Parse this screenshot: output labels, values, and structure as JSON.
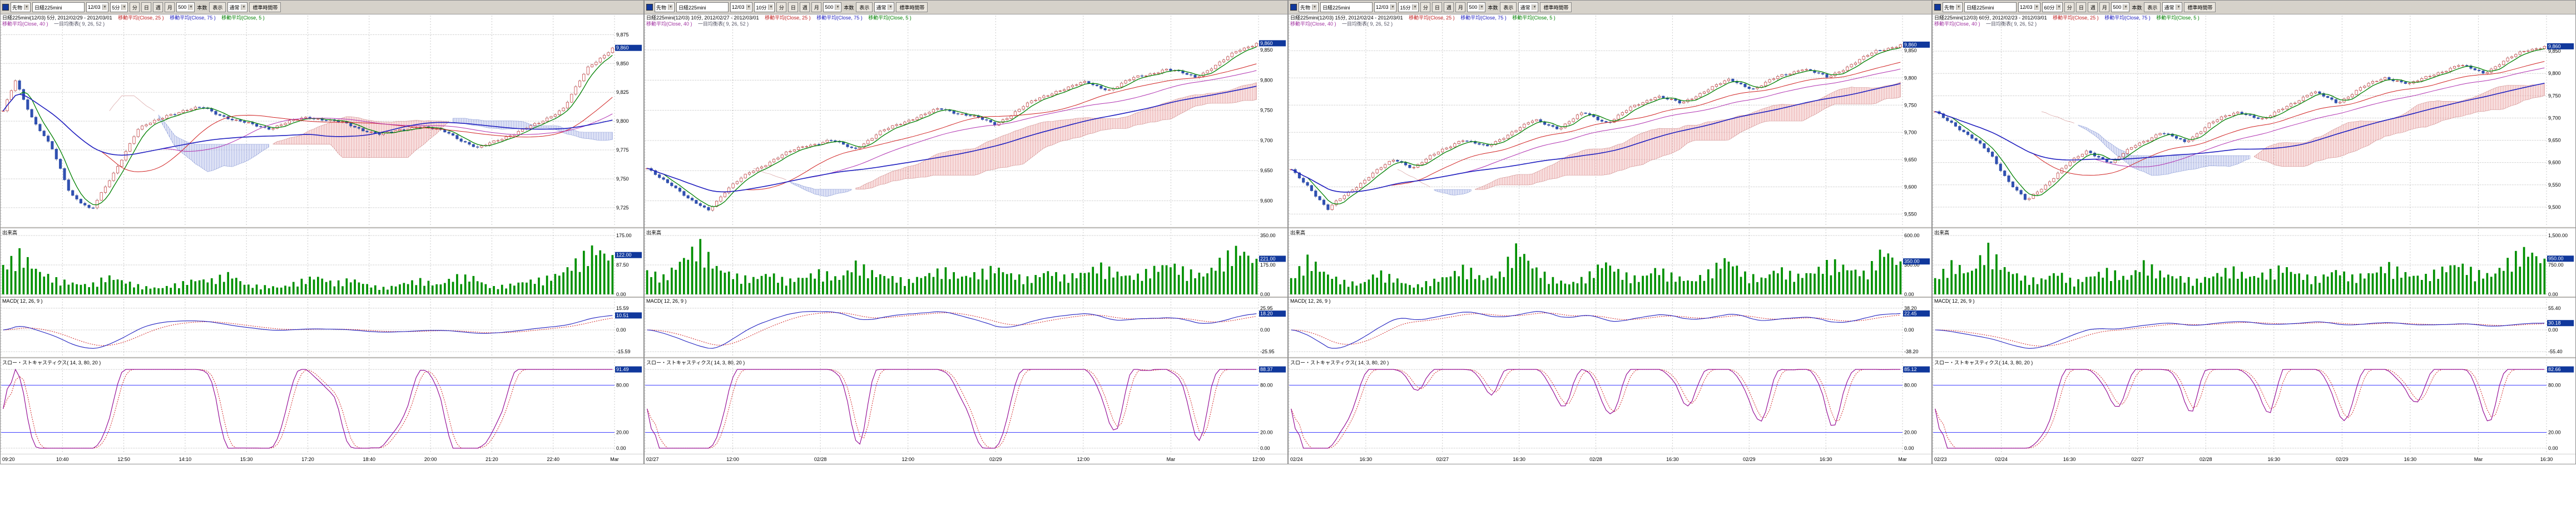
{
  "shared": {
    "volume_label": "出来高",
    "macd_label": "MACD( 12, 26, 9 )",
    "stoch_label": "スロー・ストキャスティクス( 14, 3, 80, 20 )",
    "colors": {
      "accent_box": "#10389c",
      "up_candle": "#c03030",
      "down_candle": "#3050b0",
      "ma5": "#008000",
      "ma25": "#d02020",
      "ma40": "#b030b0",
      "ma75": "#2020c0",
      "volume_bar": "#009000",
      "macd_line": "#2020c0",
      "signal_line": "#d02020",
      "stoch_k": "#900090",
      "stoch_d": "#d02020",
      "band_line": "#4040ff"
    }
  },
  "panels": [
    {
      "toolbar": {
        "category": "先物",
        "instrument": "日経225mini",
        "contract": "12/03",
        "timeframe": "5分",
        "bar_buttons": [
          "分",
          "日",
          "週",
          "月"
        ],
        "count": "500",
        "count_label": "本数",
        "display": "表示",
        "session": "通常",
        "timezone": "標準時間帯"
      },
      "header": {
        "title": "日経225mini(12/03) 5分, 2012/02/29 - 2012/03/01",
        "ma1": "移動平均(Close, 25 )",
        "ma2": "移動平均(Close, 75 )",
        "ma3": "移動平均(Close, 5 )",
        "ma4": "移動平均(Close, 40 )",
        "ichimoku": "一目均衡表( 9, 26, 52 )"
      },
      "price": {
        "type": "candlestick",
        "ylim": [
          9710,
          9880
        ],
        "ticks": [
          [
            "9,875",
            9875
          ],
          [
            "9,850",
            9850
          ],
          [
            "9,825",
            9825
          ],
          [
            "9,800",
            9800
          ],
          [
            "9,775",
            9775
          ],
          [
            "9,750",
            9750
          ],
          [
            "9,725",
            9725
          ]
        ],
        "points": [
          [
            0,
            9808
          ],
          [
            0.02,
            9836
          ],
          [
            0.05,
            9800
          ],
          [
            0.08,
            9776
          ],
          [
            0.11,
            9738
          ],
          [
            0.145,
            9722
          ],
          [
            0.18,
            9754
          ],
          [
            0.22,
            9792
          ],
          [
            0.27,
            9806
          ],
          [
            0.33,
            9812
          ],
          [
            0.38,
            9800
          ],
          [
            0.44,
            9794
          ],
          [
            0.5,
            9804
          ],
          [
            0.56,
            9798
          ],
          [
            0.62,
            9788
          ],
          [
            0.68,
            9796
          ],
          [
            0.73,
            9790
          ],
          [
            0.78,
            9776
          ],
          [
            0.83,
            9788
          ],
          [
            0.88,
            9798
          ],
          [
            0.92,
            9812
          ],
          [
            0.96,
            9846
          ],
          [
            1,
            9864
          ]
        ],
        "current": "9,860"
      },
      "volume": {
        "max": 175,
        "ticks": [
          [
            "175.00",
            175
          ],
          [
            "87.50",
            87.5
          ],
          [
            "0.00",
            0
          ]
        ],
        "values": [
          95,
          140,
          79,
          52,
          38,
          31,
          61,
          44,
          26,
          21,
          35,
          49,
          49,
          70,
          31,
          28,
          24,
          44,
          61,
          38,
          52,
          31,
          21,
          38,
          49,
          31,
          61,
          58,
          24,
          31,
          44,
          52,
          70,
          114,
          158,
          122
        ],
        "current": "122.00"
      },
      "macd": {
        "limit": 15.59,
        "ticks": [
          [
            "15.59",
            15.59
          ],
          [
            "0.00",
            0
          ],
          [
            "-15.59",
            -15.59
          ]
        ],
        "current": "10.51"
      },
      "stoch": {
        "ticks": [
          [
            "100.00",
            100
          ],
          [
            "80.00",
            80
          ],
          [
            "20.00",
            20
          ],
          [
            "0.00",
            0
          ]
        ],
        "current": "91.49"
      },
      "xlabels": [
        "09:20",
        "10:40",
        "12:50",
        "14:10",
        "15:30",
        "17:20",
        "18:40",
        "20:00",
        "21:20",
        "22:40",
        "Mar"
      ]
    },
    {
      "toolbar": {
        "category": "先物",
        "instrument": "日経225mini",
        "contract": "12/03",
        "timeframe": "10分",
        "bar_buttons": [
          "分",
          "日",
          "週",
          "月"
        ],
        "count": "500",
        "count_label": "本数",
        "display": "表示",
        "session": "通常",
        "timezone": "標準時間帯"
      },
      "header": {
        "title": "日経225mini(12/03) 10分, 2012/02/27 - 2012/03/01",
        "ma1": "移動平均(Close, 25 )",
        "ma2": "移動平均(Close, 75 )",
        "ma3": "移動平均(Close, 5 )",
        "ma4": "移動平均(Close, 40 )",
        "ichimoku": "一目均衡表( 9, 26, 52 )"
      },
      "price": {
        "type": "candlestick",
        "ylim": [
          9560,
          9885
        ],
        "ticks": [
          [
            "9,850",
            9850
          ],
          [
            "9,800",
            9800
          ],
          [
            "9,750",
            9750
          ],
          [
            "9,700",
            9700
          ],
          [
            "9,650",
            9650
          ],
          [
            "9,600",
            9600
          ]
        ],
        "points": [
          [
            0,
            9652
          ],
          [
            0.04,
            9628
          ],
          [
            0.07,
            9600
          ],
          [
            0.1,
            9585
          ],
          [
            0.13,
            9618
          ],
          [
            0.17,
            9648
          ],
          [
            0.21,
            9670
          ],
          [
            0.26,
            9692
          ],
          [
            0.3,
            9700
          ],
          [
            0.34,
            9686
          ],
          [
            0.38,
            9712
          ],
          [
            0.43,
            9735
          ],
          [
            0.48,
            9752
          ],
          [
            0.53,
            9742
          ],
          [
            0.57,
            9726
          ],
          [
            0.62,
            9758
          ],
          [
            0.67,
            9782
          ],
          [
            0.72,
            9796
          ],
          [
            0.76,
            9784
          ],
          [
            0.8,
            9804
          ],
          [
            0.85,
            9818
          ],
          [
            0.9,
            9806
          ],
          [
            0.94,
            9828
          ],
          [
            0.97,
            9850
          ],
          [
            1,
            9862
          ]
        ],
        "current": "9,860"
      },
      "volume": {
        "max": 350,
        "ticks": [
          [
            "350.00",
            350
          ],
          [
            "175.00",
            175
          ],
          [
            "0.00",
            0
          ]
        ],
        "values": [
          156,
          117,
          234,
          338,
          182,
          130,
          104,
          143,
          91,
          117,
          156,
          104,
          208,
          143,
          117,
          91,
          130,
          169,
          117,
          143,
          182,
          130,
          104,
          156,
          117,
          143,
          195,
          143,
          117,
          169,
          208,
          156,
          130,
          234,
          312,
          221
        ],
        "current": "221.00"
      },
      "macd": {
        "limit": 25.95,
        "ticks": [
          [
            "25.95",
            25.95
          ],
          [
            "0.00",
            0
          ],
          [
            "-25.95",
            -25.95
          ]
        ],
        "current": "18.20"
      },
      "stoch": {
        "ticks": [
          [
            "100.00",
            100
          ],
          [
            "80.00",
            80
          ],
          [
            "20.00",
            20
          ],
          [
            "0.00",
            0
          ]
        ],
        "current": "88.37"
      },
      "xlabels": [
        "02/27",
        "12:00",
        "02/28",
        "12:00",
        "02/29",
        "12:00",
        "Mar",
        "12:00"
      ]
    },
    {
      "toolbar": {
        "category": "先物",
        "instrument": "日経225mini",
        "contract": "12/03",
        "timeframe": "15分",
        "bar_buttons": [
          "分",
          "日",
          "週",
          "月"
        ],
        "count": "500",
        "count_label": "本数",
        "display": "表示",
        "session": "通常",
        "timezone": "標準時間帯"
      },
      "header": {
        "title": "日経225mini(12/03) 15分, 2012/02/24 - 2012/03/01",
        "ma1": "移動平均(Close, 25 )",
        "ma2": "移動平均(Close, 75 )",
        "ma3": "移動平均(Close, 5 )",
        "ma4": "移動平均(Close, 40 )",
        "ichimoku": "一目均衡表( 9, 26, 52 )"
      },
      "price": {
        "type": "candlestick",
        "ylim": [
          9530,
          9890
        ],
        "ticks": [
          [
            "9,850",
            9850
          ],
          [
            "9,800",
            9800
          ],
          [
            "9,750",
            9750
          ],
          [
            "9,700",
            9700
          ],
          [
            "9,650",
            9650
          ],
          [
            "9,600",
            9600
          ],
          [
            "9,550",
            9550
          ]
        ],
        "points": [
          [
            0,
            9630
          ],
          [
            0.03,
            9600
          ],
          [
            0.06,
            9558
          ],
          [
            0.09,
            9586
          ],
          [
            0.13,
            9622
          ],
          [
            0.17,
            9650
          ],
          [
            0.2,
            9636
          ],
          [
            0.24,
            9662
          ],
          [
            0.28,
            9688
          ],
          [
            0.32,
            9672
          ],
          [
            0.36,
            9700
          ],
          [
            0.4,
            9722
          ],
          [
            0.44,
            9708
          ],
          [
            0.48,
            9736
          ],
          [
            0.52,
            9718
          ],
          [
            0.56,
            9746
          ],
          [
            0.6,
            9768
          ],
          [
            0.64,
            9752
          ],
          [
            0.68,
            9778
          ],
          [
            0.72,
            9796
          ],
          [
            0.76,
            9780
          ],
          [
            0.8,
            9802
          ],
          [
            0.84,
            9818
          ],
          [
            0.88,
            9800
          ],
          [
            0.92,
            9826
          ],
          [
            0.96,
            9848
          ],
          [
            1,
            9862
          ]
        ],
        "current": "9,860"
      },
      "volume": {
        "max": 600,
        "ticks": [
          [
            "600.00",
            600
          ],
          [
            "300.00",
            300
          ],
          [
            "0.00",
            0
          ]
        ],
        "values": [
          180,
          420,
          240,
          150,
          120,
          260,
          180,
          90,
          150,
          210,
          320,
          180,
          240,
          560,
          300,
          180,
          120,
          210,
          380,
          240,
          180,
          300,
          210,
          150,
          260,
          420,
          240,
          180,
          300,
          210,
          260,
          380,
          300,
          240,
          520,
          350
        ],
        "current": "350.00"
      },
      "macd": {
        "limit": 38.2,
        "ticks": [
          [
            "38.20",
            38.2
          ],
          [
            "0.00",
            0
          ],
          [
            "-38.20",
            -38.2
          ]
        ],
        "current": "22.45"
      },
      "stoch": {
        "ticks": [
          [
            "100.00",
            100
          ],
          [
            "80.00",
            80
          ],
          [
            "20.00",
            20
          ],
          [
            "0.00",
            0
          ]
        ],
        "current": "85.12"
      },
      "xlabels": [
        "02/24",
        "16:30",
        "02/27",
        "16:30",
        "02/28",
        "16:30",
        "02/29",
        "16:30",
        "Mar"
      ]
    },
    {
      "toolbar": {
        "category": "先物",
        "instrument": "日経225mini",
        "contract": "12/03",
        "timeframe": "60分",
        "bar_buttons": [
          "分",
          "日",
          "週",
          "月"
        ],
        "count": "500",
        "count_label": "本数",
        "display": "表示",
        "session": "通常",
        "timezone": "標準時間帯"
      },
      "header": {
        "title": "日経225mini(12/03) 60分, 2012/02/23 - 2012/03/01",
        "ma1": "移動平均(Close, 25 )",
        "ma2": "移動平均(Close, 75 )",
        "ma3": "移動平均(Close, 5 )",
        "ma4": "移動平均(Close, 40 )",
        "ichimoku": "一目均衡表( 9, 26, 52 )"
      },
      "price": {
        "type": "candlestick",
        "ylim": [
          9460,
          9900
        ],
        "ticks": [
          [
            "9,850",
            9850
          ],
          [
            "9,800",
            9800
          ],
          [
            "9,750",
            9750
          ],
          [
            "9,700",
            9700
          ],
          [
            "9,650",
            9650
          ],
          [
            "9,600",
            9600
          ],
          [
            "9,550",
            9550
          ],
          [
            "9,500",
            9500
          ]
        ],
        "points": [
          [
            0,
            9712
          ],
          [
            0.03,
            9688
          ],
          [
            0.06,
            9655
          ],
          [
            0.09,
            9620
          ],
          [
            0.12,
            9560
          ],
          [
            0.15,
            9512
          ],
          [
            0.18,
            9548
          ],
          [
            0.21,
            9590
          ],
          [
            0.25,
            9625
          ],
          [
            0.29,
            9600
          ],
          [
            0.33,
            9640
          ],
          [
            0.37,
            9668
          ],
          [
            0.41,
            9645
          ],
          [
            0.45,
            9688
          ],
          [
            0.5,
            9715
          ],
          [
            0.54,
            9695
          ],
          [
            0.58,
            9730
          ],
          [
            0.62,
            9758
          ],
          [
            0.66,
            9735
          ],
          [
            0.7,
            9768
          ],
          [
            0.74,
            9792
          ],
          [
            0.78,
            9775
          ],
          [
            0.82,
            9800
          ],
          [
            0.86,
            9818
          ],
          [
            0.9,
            9802
          ],
          [
            0.94,
            9832
          ],
          [
            0.97,
            9852
          ],
          [
            1,
            9862
          ]
        ],
        "current": "9,860"
      },
      "volume": {
        "max": 1500,
        "ticks": [
          [
            "1,500.00",
            1500
          ],
          [
            "750.00",
            750
          ],
          [
            "0.00",
            0
          ]
        ],
        "values": [
          450,
          900,
          600,
          1350,
          750,
          500,
          400,
          650,
          350,
          550,
          700,
          450,
          900,
          600,
          500,
          400,
          550,
          750,
          500,
          600,
          800,
          550,
          450,
          700,
          500,
          600,
          850,
          600,
          500,
          700,
          900,
          650,
          550,
          1000,
          1300,
          950
        ],
        "current": "950.00"
      },
      "macd": {
        "limit": 55.4,
        "ticks": [
          [
            "55.40",
            55.4
          ],
          [
            "0.00",
            0
          ],
          [
            "-55.40",
            -55.4
          ]
        ],
        "current": "30.18"
      },
      "stoch": {
        "ticks": [
          [
            "100.00",
            100
          ],
          [
            "80.00",
            80
          ],
          [
            "20.00",
            20
          ],
          [
            "0.00",
            0
          ]
        ],
        "current": "82.66"
      },
      "xlabels": [
        "02/23",
        "02/24",
        "16:30",
        "02/27",
        "02/28",
        "16:30",
        "02/29",
        "16:30",
        "Mar",
        "16:30"
      ]
    }
  ]
}
